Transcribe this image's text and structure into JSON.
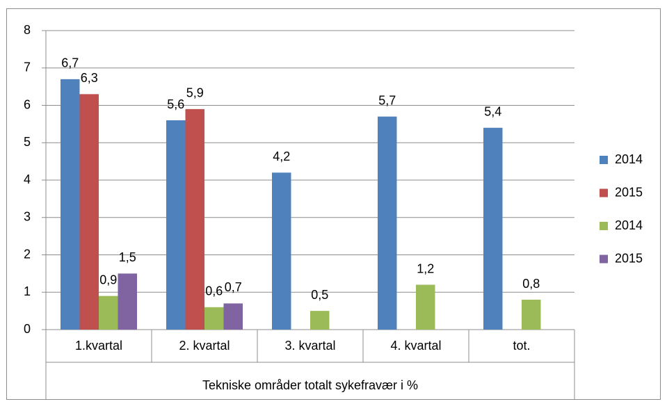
{
  "chart_data": {
    "type": "bar",
    "xlabel": "Tekniske områder totalt sykefravær i %",
    "categories": [
      "1.kvartal",
      "2. kvartal",
      "3. kvartal",
      "4. kvartal",
      "tot."
    ],
    "series": [
      {
        "name": "2014",
        "color": "#4f81bd",
        "values": [
          6.7,
          5.6,
          4.2,
          5.7,
          5.4
        ],
        "value_labels": [
          "6,7",
          "5,6",
          "4,2",
          "5,7",
          "5,4"
        ]
      },
      {
        "name": "2015",
        "color": "#c0504d",
        "values": [
          6.3,
          5.9,
          null,
          null,
          null
        ],
        "value_labels": [
          "6,3",
          "5,9",
          null,
          null,
          null
        ]
      },
      {
        "name": "2014",
        "color": "#9bbb59",
        "values": [
          0.9,
          0.6,
          0.5,
          1.2,
          0.8
        ],
        "value_labels": [
          "0,9",
          "0,6",
          "0,5",
          "1,2",
          "0,8"
        ]
      },
      {
        "name": "2015",
        "color": "#8064a2",
        "values": [
          1.5,
          0.7,
          null,
          null,
          null
        ],
        "value_labels": [
          "1,5",
          "0,7",
          null,
          null,
          null
        ]
      }
    ],
    "ylim": [
      0,
      8
    ],
    "yticks": [
      0,
      1,
      2,
      3,
      4,
      5,
      6,
      7,
      8
    ],
    "grid": true,
    "legend": "right"
  }
}
